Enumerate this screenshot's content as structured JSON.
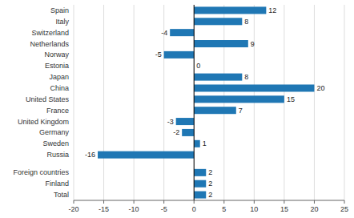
{
  "chart_data": {
    "type": "bar",
    "orientation": "horizontal",
    "categories": [
      "Spain",
      "Italy",
      "Switzerland",
      "Netherlands",
      "Norway",
      "Estonia",
      "Japan",
      "China",
      "United States",
      "France",
      "United Kingdom",
      "Germany",
      "Sweden",
      "Russia",
      null,
      "Foreign countries",
      "Finland",
      "Total"
    ],
    "values": [
      12,
      8,
      -4,
      9,
      -5,
      0,
      8,
      20,
      15,
      7,
      -3,
      -2,
      1,
      -16,
      null,
      2,
      2,
      2
    ],
    "color": "#1f77b4",
    "xlim": [
      -20,
      25
    ],
    "xticks": [
      -20,
      -15,
      -10,
      -5,
      0,
      5,
      10,
      15,
      20,
      25
    ],
    "grid": true,
    "data_labels": true
  }
}
